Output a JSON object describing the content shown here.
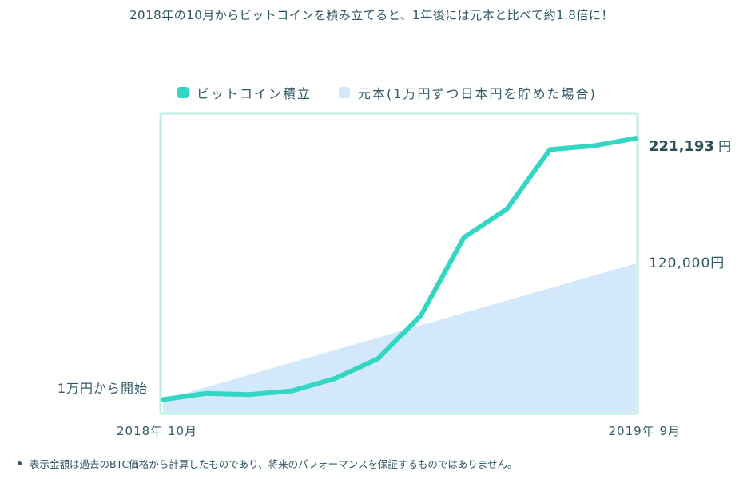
{
  "headline": "2018年の10月からビットコインを積み立てると、1年後には元本と比べて約1.8倍に！",
  "legend": {
    "btc_label": "ビットコイン積立",
    "principal_label": "元本(1万円ずつ日本円を貯めた場合)"
  },
  "colors": {
    "btc_line": "#33d6c2",
    "principal_fill": "#d3e8fa",
    "frame": "#bdeee6",
    "text": "#2c5561"
  },
  "chart_data": {
    "type": "line",
    "x": [
      "2018-10",
      "2018-11",
      "2018-12",
      "2019-01",
      "2019-02",
      "2019-03",
      "2019-04",
      "2019-05",
      "2019-06",
      "2019-07",
      "2019-08",
      "2019-09"
    ],
    "xtick_labels": {
      "start": "2018年 10月",
      "end": "2019年 9月"
    },
    "series": [
      {
        "name": "ビットコイン積立",
        "type": "line",
        "values": [
          10000,
          15000,
          14000,
          17000,
          27000,
          43000,
          78000,
          141000,
          164000,
          212000,
          215000,
          221193
        ]
      },
      {
        "name": "元本(1万円ずつ日本円を貯めた場合)",
        "type": "area",
        "values": [
          10000,
          20000,
          30000,
          40000,
          50000,
          60000,
          70000,
          80000,
          90000,
          100000,
          110000,
          120000
        ]
      }
    ],
    "ylim": [
      0,
      240000
    ],
    "annotations": {
      "start": "1万円から開始",
      "btc_final": "221,193",
      "btc_final_unit": "円",
      "principal_final": "120,000円"
    },
    "legend_position": "top",
    "grid": false
  },
  "footnote": "表示金額は過去のBTC価格から計算したものであり、将来のパフォーマンスを保証するものではありません。"
}
